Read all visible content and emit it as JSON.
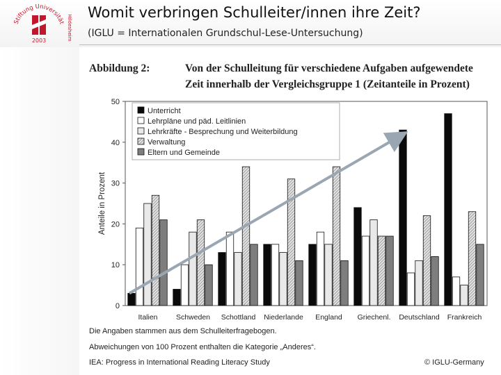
{
  "slide": {
    "title": "Womit verbringen Schulleiter/innen ihre Zeit?",
    "subtitle": "(IGLU = Internationalen Grundschul-Lese-Untersuchung)"
  },
  "logo": {
    "text_top": "Stiftung Universität",
    "text_bottom": "Hildesheim",
    "year": "2003",
    "colors": {
      "red": "#c0172c"
    }
  },
  "figure": {
    "label": "Abbildung 2:",
    "heading_line1": "Von der Schulleitung für verschiedene Aufgaben aufgewendete",
    "heading_line2": "Zeit innerhalb der Vergleichsgruppe 1 (Zeitanteile in Prozent)"
  },
  "footnotes": {
    "line1": "Die Angaben stammen aus dem Schulleiterfragebogen.",
    "line2": "Abweichungen von 100 Prozent enthalten die Kategorie „Anderes“.",
    "source": "IEA: Progress in International Reading Literacy Study",
    "copyright": "© IGLU-Germany"
  },
  "chart_data": {
    "type": "bar",
    "ylabel": "Anteile in Prozent",
    "ylim": [
      0,
      50
    ],
    "yticks": [
      "0",
      "10",
      "20",
      "30",
      "40",
      "50"
    ],
    "categories": [
      "Italien",
      "Schweden",
      "Schottland",
      "Niederlande",
      "England",
      "Griechenl.",
      "Deutschland",
      "Frankreich"
    ],
    "series": [
      {
        "name": "Unterricht",
        "values": [
          3,
          4,
          13,
          15,
          15,
          24,
          43,
          47
        ],
        "style": "black"
      },
      {
        "name": "Lehrpläne und päd. Leitlinien",
        "values": [
          19,
          10,
          18,
          15,
          18,
          17,
          8,
          7
        ],
        "style": "white"
      },
      {
        "name": "Lehrkräfte - Besprechung und Weiterbildung",
        "values": [
          25,
          18,
          13,
          13,
          15,
          21,
          11,
          5
        ],
        "style": "light"
      },
      {
        "name": "Verwaltung",
        "values": [
          27,
          21,
          34,
          31,
          34,
          17,
          22,
          23
        ],
        "style": "hatched"
      },
      {
        "name": "Eltern und Gemeinde",
        "values": [
          21,
          10,
          15,
          11,
          11,
          17,
          12,
          15
        ],
        "style": "gray"
      }
    ],
    "legend": "top-left",
    "annotation": {
      "type": "arrow",
      "from": [
        "Italien",
        3
      ],
      "to": [
        "Deutschland",
        43
      ],
      "color": "#9aa7b2"
    }
  }
}
